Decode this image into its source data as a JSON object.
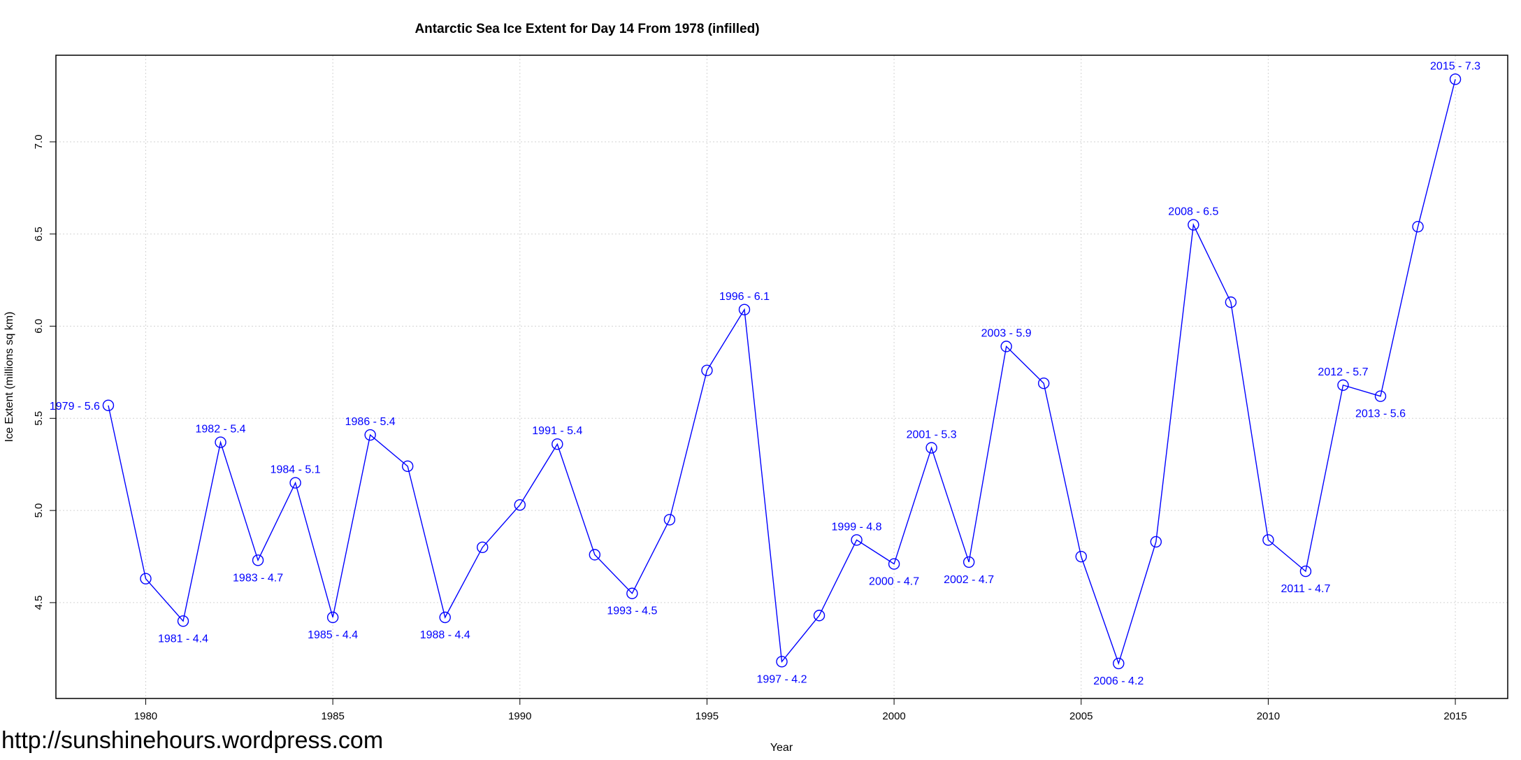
{
  "chart_data": {
    "type": "line",
    "title": "Antarctic Sea Ice Extent for Day 14 From 1978 (infilled)",
    "xlabel": "Year",
    "ylabel": "Ice Extent (millions sq km)",
    "xlim": [
      1977.6,
      2016.4
    ],
    "ylim": [
      3.98,
      7.47
    ],
    "x_ticks": [
      1980,
      1985,
      1990,
      1995,
      2000,
      2005,
      2010,
      2015
    ],
    "y_ticks": [
      4.5,
      5.0,
      5.5,
      6.0,
      6.5,
      7.0
    ],
    "grid": true,
    "color": "#0000ff",
    "series": [
      {
        "x": [
          1979,
          1980,
          1981,
          1982,
          1983,
          1984,
          1985,
          1986,
          1987,
          1988,
          1989,
          1990,
          1991,
          1992,
          1993,
          1994,
          1995,
          1996,
          1997,
          1998,
          1999,
          2000,
          2001,
          2002,
          2003,
          2004,
          2005,
          2006,
          2007,
          2008,
          2009,
          2010,
          2011,
          2012,
          2013,
          2014,
          2015
        ],
        "values": [
          5.57,
          4.63,
          4.4,
          5.37,
          4.73,
          5.15,
          4.42,
          5.41,
          5.24,
          4.42,
          4.8,
          5.03,
          5.36,
          4.76,
          4.55,
          4.95,
          5.76,
          6.09,
          4.18,
          4.43,
          4.84,
          4.71,
          5.34,
          4.72,
          5.89,
          5.69,
          4.75,
          4.17,
          4.83,
          6.55,
          6.13,
          4.84,
          4.67,
          5.68,
          5.62,
          6.54,
          7.34
        ]
      }
    ],
    "annotations": [
      {
        "x": 1979,
        "y": 5.57,
        "text": "1979 - 5.6",
        "pos": "left"
      },
      {
        "x": 1981,
        "y": 4.4,
        "text": "1981 - 4.4",
        "pos": "below"
      },
      {
        "x": 1982,
        "y": 5.37,
        "text": "1982 - 5.4",
        "pos": "above"
      },
      {
        "x": 1983,
        "y": 4.73,
        "text": "1983 - 4.7",
        "pos": "below"
      },
      {
        "x": 1984,
        "y": 5.15,
        "text": "1984 - 5.1",
        "pos": "above"
      },
      {
        "x": 1985,
        "y": 4.42,
        "text": "1985 - 4.4",
        "pos": "below"
      },
      {
        "x": 1986,
        "y": 5.41,
        "text": "1986 - 5.4",
        "pos": "above"
      },
      {
        "x": 1988,
        "y": 4.42,
        "text": "1988 - 4.4",
        "pos": "below"
      },
      {
        "x": 1991,
        "y": 5.36,
        "text": "1991 - 5.4",
        "pos": "above"
      },
      {
        "x": 1993,
        "y": 4.55,
        "text": "1993 - 4.5",
        "pos": "below"
      },
      {
        "x": 1996,
        "y": 6.09,
        "text": "1996 - 6.1",
        "pos": "above"
      },
      {
        "x": 1997,
        "y": 4.18,
        "text": "1997 - 4.2",
        "pos": "below"
      },
      {
        "x": 1999,
        "y": 4.84,
        "text": "1999 - 4.8",
        "pos": "above"
      },
      {
        "x": 2000,
        "y": 4.71,
        "text": "2000 - 4.7",
        "pos": "below"
      },
      {
        "x": 2001,
        "y": 5.34,
        "text": "2001 - 5.3",
        "pos": "above"
      },
      {
        "x": 2002,
        "y": 4.72,
        "text": "2002 - 4.7",
        "pos": "below"
      },
      {
        "x": 2003,
        "y": 5.89,
        "text": "2003 - 5.9",
        "pos": "above"
      },
      {
        "x": 2006,
        "y": 4.17,
        "text": "2006 - 4.2",
        "pos": "below"
      },
      {
        "x": 2008,
        "y": 6.55,
        "text": "2008 - 6.5",
        "pos": "above"
      },
      {
        "x": 2011,
        "y": 4.67,
        "text": "2011 - 4.7",
        "pos": "below"
      },
      {
        "x": 2012,
        "y": 5.68,
        "text": "2012 - 5.7",
        "pos": "above"
      },
      {
        "x": 2013,
        "y": 5.62,
        "text": "2013 - 5.6",
        "pos": "below"
      },
      {
        "x": 2015,
        "y": 7.34,
        "text": "2015 - 7.3",
        "pos": "above"
      }
    ]
  },
  "watermark": "http://sunshinehours.wordpress.com"
}
